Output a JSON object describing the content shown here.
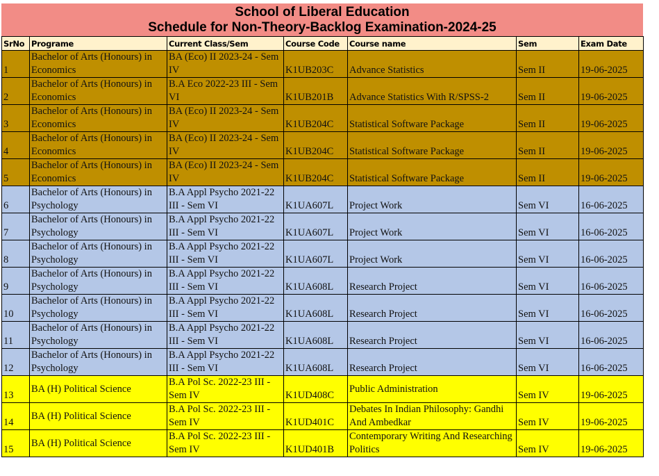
{
  "title": {
    "line1": "School of Liberal Education",
    "line2": "Schedule for Non-Theory-Backlog Examination-2024-25",
    "color": "#f28c86"
  },
  "headers": [
    "SrNo",
    "Programe",
    "Current Class/Sem",
    "Course Code",
    "Course name",
    "Sem",
    "Exam Date"
  ],
  "group_colors": {
    "eco": "#bf8f00",
    "psy": "#b4c7e7",
    "pol": "#ffff00",
    "header": "#fff2cc"
  },
  "rows": [
    {
      "group": "eco",
      "srno": "1",
      "programe": "Bachelor of Arts (Honours) in Economics",
      "class": "BA (Eco) II 2023-24 - Sem IV",
      "code": "K1UB203C",
      "course": "Advance Statistics",
      "sem": "Sem II",
      "date": "19-06-2025"
    },
    {
      "group": "eco",
      "srno": "2",
      "programe": "Bachelor of Arts (Honours) in Economics",
      "class": "B.A Eco 2022-23 III - Sem VI",
      "code": "K1UB201B",
      "course": "Advance Statistics With R/SPSS-2",
      "sem": "Sem II",
      "date": "19-06-2025"
    },
    {
      "group": "eco",
      "srno": "3",
      "programe": "Bachelor of Arts (Honours) in Economics",
      "class": "BA (Eco) II 2023-24 - Sem IV",
      "code": "K1UB204C",
      "course": "Statistical Software Package",
      "sem": "Sem II",
      "date": "19-06-2025"
    },
    {
      "group": "eco",
      "srno": "4",
      "programe": "Bachelor of Arts (Honours) in Economics",
      "class": "BA (Eco) II 2023-24 - Sem IV",
      "code": "K1UB204C",
      "course": "Statistical Software Package",
      "sem": "Sem II",
      "date": "19-06-2025"
    },
    {
      "group": "eco",
      "srno": "5",
      "programe": "Bachelor of Arts (Honours) in Economics",
      "class": "BA (Eco) II 2023-24 - Sem IV",
      "code": "K1UB204C",
      "course": "Statistical Software Package",
      "sem": "Sem II",
      "date": "19-06-2025"
    },
    {
      "group": "psy",
      "srno": "6",
      "programe": "Bachelor of Arts (Honours) in Psychology",
      "class": "B.A Appl Psycho 2021-22 III - Sem VI",
      "code": "K1UA607L",
      "course": "Project Work",
      "sem": "Sem VI",
      "date": "16-06-2025"
    },
    {
      "group": "psy",
      "srno": "7",
      "programe": "Bachelor of Arts (Honours) in Psychology",
      "class": "B.A Appl Psycho 2021-22 III - Sem VI",
      "code": "K1UA607L",
      "course": "Project Work",
      "sem": "Sem VI",
      "date": "16-06-2025"
    },
    {
      "group": "psy",
      "srno": "8",
      "programe": "Bachelor of Arts (Honours) in Psychology",
      "class": "B.A Appl Psycho 2021-22 III - Sem VI",
      "code": "K1UA607L",
      "course": "Project Work",
      "sem": "Sem VI",
      "date": "16-06-2025"
    },
    {
      "group": "psy",
      "srno": "9",
      "programe": "Bachelor of Arts (Honours) in Psychology",
      "class": "B.A Appl Psycho 2021-22 III - Sem VI",
      "code": "K1UA608L",
      "course": "Research Project",
      "sem": "Sem VI",
      "date": "16-06-2025"
    },
    {
      "group": "psy",
      "srno": "10",
      "programe": "Bachelor of Arts (Honours) in Psychology",
      "class": "B.A Appl Psycho 2021-22 III - Sem VI",
      "code": "K1UA608L",
      "course": "Research Project",
      "sem": "Sem VI",
      "date": "16-06-2025"
    },
    {
      "group": "psy",
      "srno": "11",
      "programe": "Bachelor of Arts (Honours) in Psychology",
      "class": "B.A Appl Psycho 2021-22 III - Sem VI",
      "code": "K1UA608L",
      "course": "Research Project",
      "sem": "Sem VI",
      "date": "16-06-2025"
    },
    {
      "group": "psy",
      "srno": "12",
      "programe": "Bachelor of Arts (Honours) in Psychology",
      "class": "B.A Appl Psycho 2021-22 III - Sem VI",
      "code": "K1UA608L",
      "course": "Research Project",
      "sem": "Sem VI",
      "date": "16-06-2025"
    },
    {
      "group": "pol",
      "srno": "13",
      "programe": "BA (H) Political Science",
      "class": "B.A Pol Sc. 2022-23 III - Sem IV",
      "code": "K1UD408C",
      "course": "Public Administration",
      "sem": "Sem IV",
      "date": "19-06-2025"
    },
    {
      "group": "pol",
      "srno": "14",
      "programe": "BA (H) Political Science",
      "class": "B.A Pol Sc. 2022-23 III - Sem IV",
      "code": "K1UD401C",
      "course": "Debates In Indian Philosophy: Gandhi And Ambedkar",
      "sem": "Sem IV",
      "date": "19-06-2025"
    },
    {
      "group": "pol",
      "srno": "15",
      "programe": "BA (H) Political Science",
      "class": "B.A Pol Sc. 2022-23 III - Sem IV",
      "code": "K1UD401B",
      "course": "Contemporary Writing And Researching Politics",
      "sem": "Sem IV",
      "date": "19-06-2025"
    }
  ]
}
